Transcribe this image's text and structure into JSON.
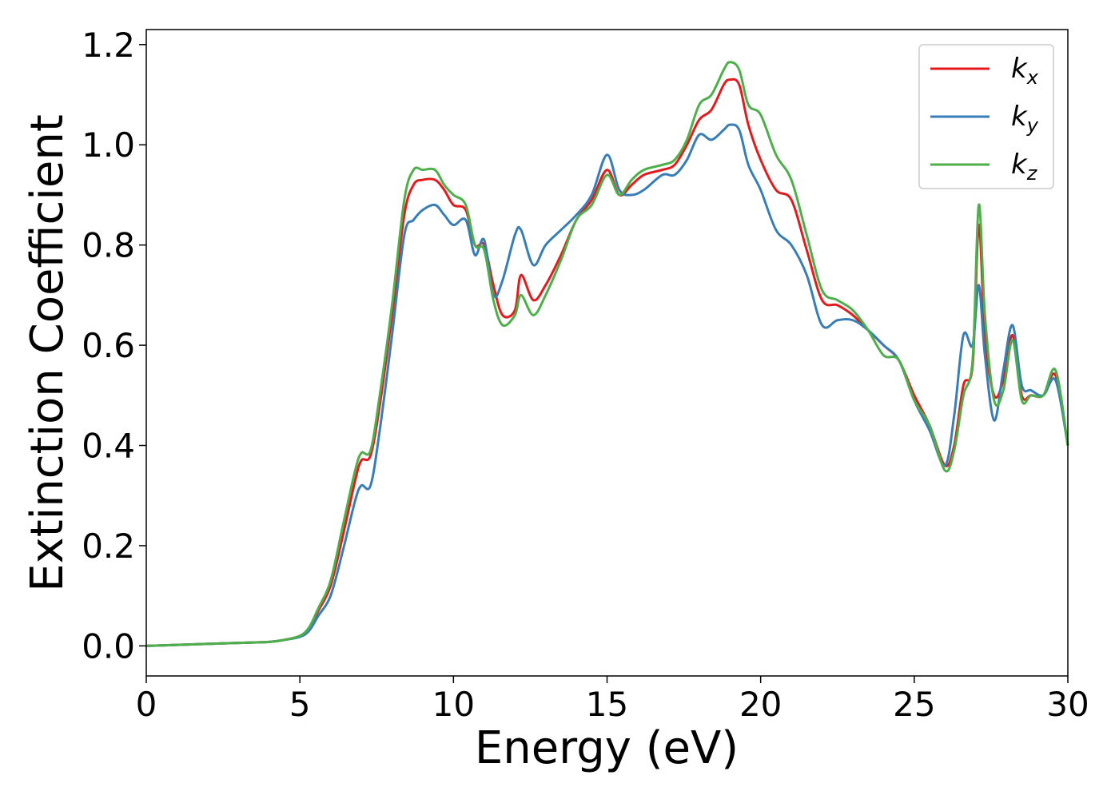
{
  "chart_data": {
    "type": "line",
    "title": "",
    "xlabel": "Energy (eV)",
    "ylabel": "Extinction Coefficient",
    "xlim": [
      0,
      30
    ],
    "ylim": [
      -0.06,
      1.23
    ],
    "xticks": [
      0,
      5,
      10,
      15,
      20,
      25,
      30
    ],
    "yticks": [
      0.0,
      0.2,
      0.4,
      0.6,
      0.8,
      1.0,
      1.2
    ],
    "grid": false,
    "legend_position": "top-right",
    "series": [
      {
        "name": "kx",
        "legend_base": "k",
        "legend_sub": "x",
        "color": "#e41a1c",
        "x": [
          0,
          1,
          2,
          3,
          4,
          4.5,
          5,
          5.3,
          5.6,
          6.0,
          6.4,
          6.8,
          7.0,
          7.3,
          7.6,
          8.0,
          8.4,
          8.7,
          9.0,
          9.4,
          9.7,
          10.0,
          10.4,
          10.7,
          11.0,
          11.3,
          11.6,
          12.0,
          12.2,
          12.6,
          13.0,
          13.5,
          14.0,
          14.5,
          15.0,
          15.4,
          15.8,
          16.2,
          16.8,
          17.2,
          17.6,
          18.0,
          18.4,
          18.8,
          19.0,
          19.3,
          19.6,
          20.0,
          20.5,
          21.0,
          21.5,
          22.0,
          22.5,
          23.0,
          23.5,
          24.0,
          24.5,
          25.0,
          25.5,
          26.0,
          26.3,
          26.6,
          26.9,
          27.1,
          27.3,
          27.6,
          27.9,
          28.2,
          28.5,
          28.8,
          29.2,
          29.6,
          30.0
        ],
        "y": [
          0.0,
          0.002,
          0.004,
          0.006,
          0.008,
          0.012,
          0.02,
          0.035,
          0.07,
          0.12,
          0.22,
          0.33,
          0.37,
          0.38,
          0.48,
          0.66,
          0.86,
          0.92,
          0.93,
          0.93,
          0.91,
          0.88,
          0.87,
          0.8,
          0.8,
          0.72,
          0.66,
          0.67,
          0.74,
          0.69,
          0.72,
          0.78,
          0.85,
          0.89,
          0.95,
          0.9,
          0.92,
          0.94,
          0.95,
          0.96,
          1.0,
          1.05,
          1.07,
          1.12,
          1.13,
          1.12,
          1.04,
          0.97,
          0.91,
          0.89,
          0.79,
          0.69,
          0.68,
          0.66,
          0.63,
          0.6,
          0.57,
          0.5,
          0.44,
          0.36,
          0.4,
          0.52,
          0.56,
          0.84,
          0.62,
          0.5,
          0.53,
          0.62,
          0.5,
          0.5,
          0.5,
          0.54,
          0.4
        ]
      },
      {
        "name": "ky",
        "legend_base": "k",
        "legend_sub": "y",
        "color": "#377eb8",
        "x": [
          0,
          1,
          2,
          3,
          4,
          4.5,
          5,
          5.3,
          5.6,
          6.0,
          6.4,
          6.8,
          7.0,
          7.3,
          7.6,
          8.0,
          8.4,
          8.7,
          9.0,
          9.4,
          9.7,
          10.0,
          10.4,
          10.7,
          11.0,
          11.3,
          11.6,
          12.0,
          12.2,
          12.6,
          13.0,
          13.5,
          14.0,
          14.5,
          15.0,
          15.4,
          15.8,
          16.2,
          16.8,
          17.2,
          17.6,
          18.0,
          18.4,
          18.8,
          19.0,
          19.3,
          19.6,
          20.0,
          20.5,
          21.0,
          21.5,
          22.0,
          22.5,
          23.0,
          23.5,
          24.0,
          24.5,
          25.0,
          25.5,
          26.0,
          26.3,
          26.6,
          26.9,
          27.1,
          27.3,
          27.6,
          27.9,
          28.2,
          28.5,
          28.8,
          29.2,
          29.6,
          30.0
        ],
        "y": [
          0.0,
          0.002,
          0.004,
          0.006,
          0.008,
          0.012,
          0.018,
          0.03,
          0.06,
          0.1,
          0.19,
          0.29,
          0.32,
          0.32,
          0.43,
          0.62,
          0.82,
          0.85,
          0.87,
          0.88,
          0.86,
          0.84,
          0.85,
          0.78,
          0.81,
          0.7,
          0.73,
          0.82,
          0.83,
          0.76,
          0.8,
          0.83,
          0.86,
          0.9,
          0.98,
          0.91,
          0.9,
          0.91,
          0.94,
          0.94,
          0.97,
          1.02,
          1.01,
          1.03,
          1.04,
          1.03,
          0.96,
          0.91,
          0.83,
          0.8,
          0.74,
          0.64,
          0.65,
          0.65,
          0.63,
          0.6,
          0.57,
          0.49,
          0.43,
          0.36,
          0.46,
          0.62,
          0.6,
          0.72,
          0.58,
          0.45,
          0.55,
          0.64,
          0.52,
          0.51,
          0.5,
          0.53,
          0.4
        ]
      },
      {
        "name": "kz",
        "legend_base": "k",
        "legend_sub": "z",
        "color": "#4daf4a",
        "x": [
          0,
          1,
          2,
          3,
          4,
          4.5,
          5,
          5.3,
          5.6,
          6.0,
          6.4,
          6.8,
          7.0,
          7.3,
          7.6,
          8.0,
          8.4,
          8.7,
          9.0,
          9.4,
          9.7,
          10.0,
          10.4,
          10.7,
          11.0,
          11.3,
          11.6,
          12.0,
          12.2,
          12.6,
          13.0,
          13.5,
          14.0,
          14.5,
          15.0,
          15.4,
          15.8,
          16.2,
          16.8,
          17.2,
          17.6,
          18.0,
          18.4,
          18.8,
          19.0,
          19.3,
          19.6,
          20.0,
          20.5,
          21.0,
          21.5,
          22.0,
          22.5,
          23.0,
          23.5,
          24.0,
          24.5,
          25.0,
          25.5,
          26.0,
          26.3,
          26.6,
          26.9,
          27.1,
          27.3,
          27.6,
          27.9,
          28.2,
          28.5,
          28.8,
          29.2,
          29.6,
          30.0
        ],
        "y": [
          0.0,
          0.002,
          0.004,
          0.006,
          0.008,
          0.012,
          0.02,
          0.037,
          0.075,
          0.13,
          0.24,
          0.35,
          0.385,
          0.39,
          0.5,
          0.68,
          0.89,
          0.95,
          0.95,
          0.95,
          0.92,
          0.9,
          0.88,
          0.8,
          0.79,
          0.69,
          0.64,
          0.66,
          0.7,
          0.66,
          0.7,
          0.77,
          0.85,
          0.88,
          0.94,
          0.9,
          0.93,
          0.95,
          0.96,
          0.97,
          1.01,
          1.08,
          1.1,
          1.15,
          1.165,
          1.15,
          1.08,
          1.06,
          0.98,
          0.93,
          0.82,
          0.71,
          0.69,
          0.67,
          0.63,
          0.58,
          0.57,
          0.49,
          0.44,
          0.35,
          0.39,
          0.5,
          0.57,
          0.88,
          0.66,
          0.49,
          0.51,
          0.61,
          0.49,
          0.5,
          0.5,
          0.55,
          0.4
        ]
      }
    ]
  }
}
